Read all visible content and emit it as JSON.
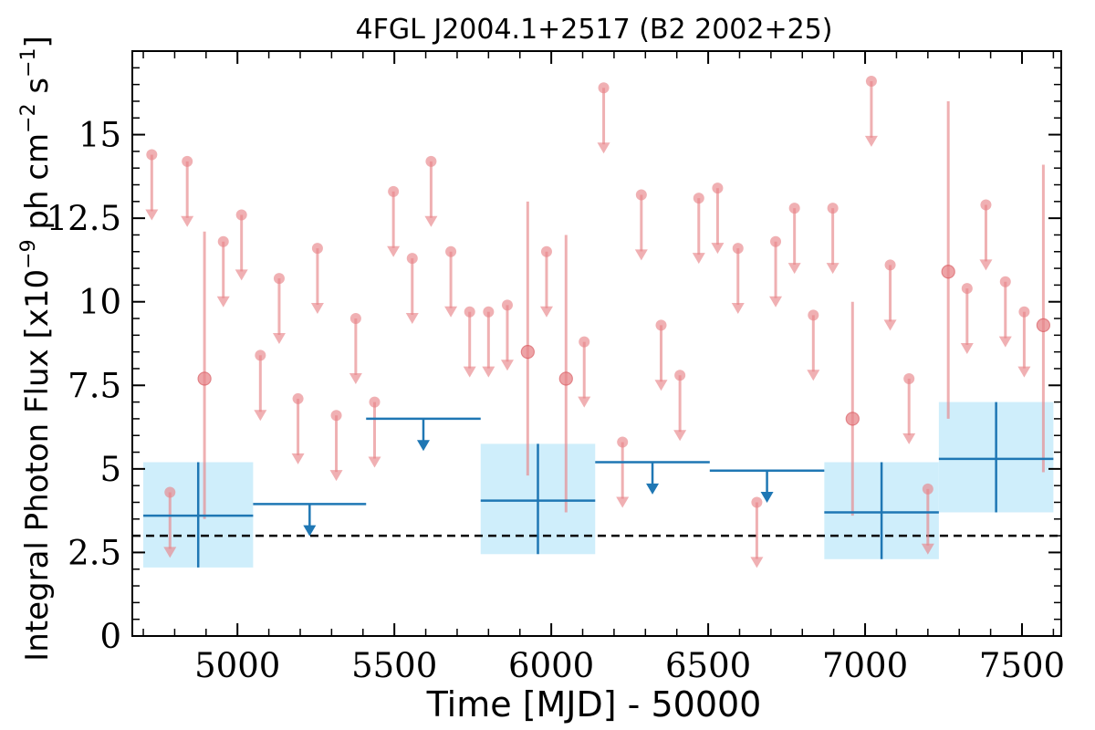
{
  "chart_data": {
    "type": "scatter",
    "title": "4FGL J2004.1+2517 (B2 2002+25)",
    "xlabel": "Time [MJD] - 50000",
    "ylabel_parts": {
      "prefix": "Integral Photon Flux [x10",
      "exp1": "−9",
      "mid": " ph cm",
      "exp2": "−2",
      "mid2": " s",
      "exp3": "−1",
      "suffix": "]"
    },
    "xlim": [
      4665,
      7625
    ],
    "ylim": [
      0,
      17.5
    ],
    "xticks": [
      5000,
      5500,
      6000,
      6500,
      7000,
      7500
    ],
    "xtick_labels": [
      "5000",
      "5500",
      "6000",
      "6500",
      "7000",
      "7500"
    ],
    "yticks": [
      0,
      2.5,
      5,
      7.5,
      10,
      12.5,
      15
    ],
    "ytick_labels": [
      "0",
      "2.5",
      "5",
      "7.5",
      "10",
      "12.5",
      "15"
    ],
    "threshold_line": 3.0,
    "colors": {
      "fine": "#e8868a",
      "coarse": "#1f77b4",
      "band": "#cfeefb",
      "threshold": "#000000"
    },
    "fine_bins": {
      "upper_limits": [
        {
          "x": 4727,
          "y": 14.4
        },
        {
          "x": 4785,
          "y": 4.3
        },
        {
          "x": 4840,
          "y": 14.2
        },
        {
          "x": 4955,
          "y": 11.8
        },
        {
          "x": 5013,
          "y": 12.6
        },
        {
          "x": 5073,
          "y": 8.4
        },
        {
          "x": 5133,
          "y": 10.7
        },
        {
          "x": 5193,
          "y": 7.1
        },
        {
          "x": 5255,
          "y": 11.6
        },
        {
          "x": 5315,
          "y": 6.6
        },
        {
          "x": 5377,
          "y": 9.5
        },
        {
          "x": 5437,
          "y": 7.0
        },
        {
          "x": 5497,
          "y": 13.3
        },
        {
          "x": 5557,
          "y": 11.3
        },
        {
          "x": 5617,
          "y": 14.2
        },
        {
          "x": 5680,
          "y": 11.5
        },
        {
          "x": 5740,
          "y": 9.7
        },
        {
          "x": 5800,
          "y": 9.7
        },
        {
          "x": 5860,
          "y": 9.9
        },
        {
          "x": 5985,
          "y": 11.5
        },
        {
          "x": 6105,
          "y": 8.8
        },
        {
          "x": 6167,
          "y": 16.4
        },
        {
          "x": 6227,
          "y": 5.8
        },
        {
          "x": 6287,
          "y": 13.2
        },
        {
          "x": 6350,
          "y": 9.3
        },
        {
          "x": 6410,
          "y": 7.8
        },
        {
          "x": 6470,
          "y": 13.1
        },
        {
          "x": 6530,
          "y": 13.4
        },
        {
          "x": 6595,
          "y": 11.6
        },
        {
          "x": 6655,
          "y": 4.0
        },
        {
          "x": 6715,
          "y": 11.8
        },
        {
          "x": 6775,
          "y": 12.8
        },
        {
          "x": 6835,
          "y": 9.6
        },
        {
          "x": 6897,
          "y": 12.8
        },
        {
          "x": 7020,
          "y": 16.6
        },
        {
          "x": 7080,
          "y": 11.1
        },
        {
          "x": 7140,
          "y": 7.7
        },
        {
          "x": 7200,
          "y": 4.4
        },
        {
          "x": 7325,
          "y": 10.4
        },
        {
          "x": 7385,
          "y": 12.9
        },
        {
          "x": 7447,
          "y": 10.6
        },
        {
          "x": 7507,
          "y": 9.7
        }
      ],
      "detections": [
        {
          "x": 4895,
          "y": 7.7,
          "ylo": 3.5,
          "yhi": 12.1
        },
        {
          "x": 5925,
          "y": 8.5,
          "ylo": 4.8,
          "yhi": 13.0
        },
        {
          "x": 6047,
          "y": 7.7,
          "ylo": 3.7,
          "yhi": 12.0
        },
        {
          "x": 6960,
          "y": 6.5,
          "ylo": 3.6,
          "yhi": 10.0
        },
        {
          "x": 7265,
          "y": 10.9,
          "ylo": 6.5,
          "yhi": 16.0
        },
        {
          "x": 7568,
          "y": 9.3,
          "ylo": 4.9,
          "yhi": 14.1
        }
      ]
    },
    "coarse_bins": {
      "detections": [
        {
          "x0": 4700,
          "x1": 5050,
          "y": 3.6,
          "ylo": 2.05,
          "yhi": 5.2
        },
        {
          "x0": 5775,
          "x1": 6140,
          "y": 4.05,
          "ylo": 2.45,
          "yhi": 5.75
        },
        {
          "x0": 6870,
          "x1": 7235,
          "y": 3.7,
          "ylo": 2.3,
          "yhi": 5.2
        },
        {
          "x0": 7235,
          "x1": 7600,
          "y": 5.3,
          "ylo": 3.7,
          "yhi": 7.0
        }
      ],
      "upper_limits": [
        {
          "x0": 5050,
          "x1": 5410,
          "y": 3.95
        },
        {
          "x0": 5410,
          "x1": 5775,
          "y": 6.5
        },
        {
          "x0": 6140,
          "x1": 6505,
          "y": 5.2
        },
        {
          "x0": 6505,
          "x1": 6870,
          "y": 4.95
        }
      ]
    }
  }
}
